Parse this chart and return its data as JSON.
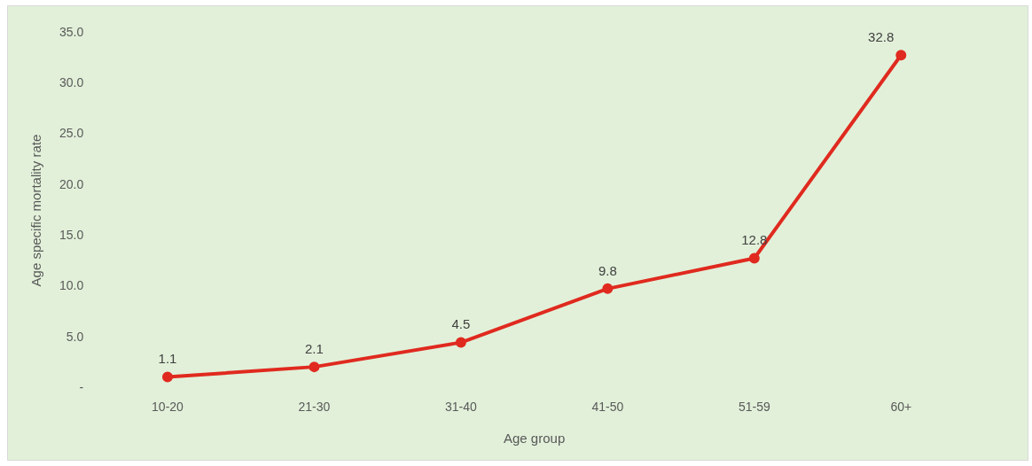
{
  "chart_data": {
    "type": "line",
    "xlabel": "Age group",
    "ylabel": "Age specific mortality rate",
    "categories": [
      "10-20",
      "21-30",
      "31-40",
      "41-50",
      "51-59",
      "60+"
    ],
    "series": [
      {
        "color": "#e02a1f",
        "values": [
          1.1,
          2.1,
          4.5,
          9.8,
          12.8,
          32.8
        ]
      }
    ],
    "ylim": [
      0,
      35
    ],
    "yticks": [
      {
        "value": 0,
        "label": "-"
      },
      {
        "value": 5,
        "label": "5.0"
      },
      {
        "value": 10,
        "label": "10.0"
      },
      {
        "value": 15,
        "label": "15.0"
      },
      {
        "value": 20,
        "label": "20.0"
      },
      {
        "value": 25,
        "label": "25.0"
      },
      {
        "value": 30,
        "label": "30.0"
      },
      {
        "value": 35,
        "label": "35.0"
      }
    ],
    "grid": false,
    "legend": false,
    "marker": "circle",
    "line_style": "solid",
    "data_labels": true
  }
}
